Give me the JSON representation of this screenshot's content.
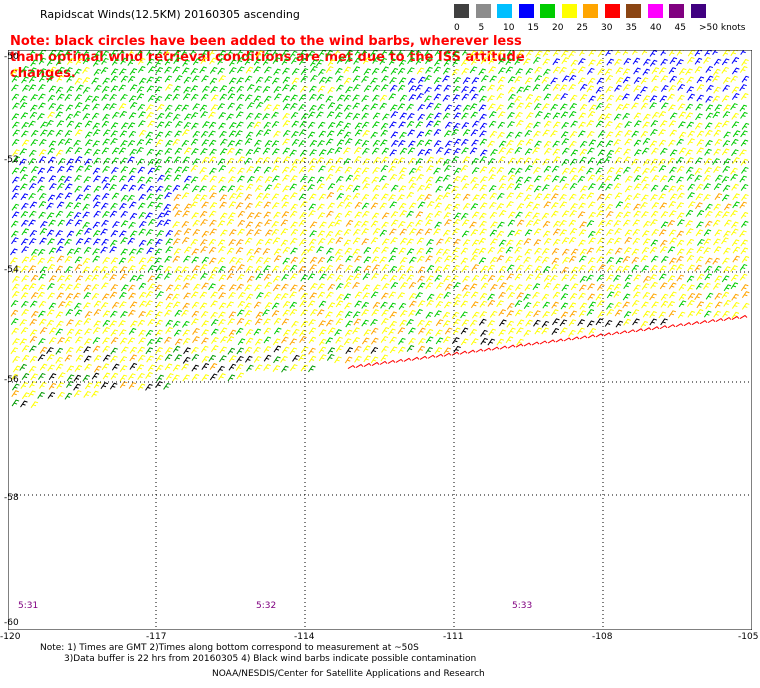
{
  "title": "Rapidscat Winds(12.5KM) 20160305 ascending",
  "note": "Note: black circles have been added to the wind barbs, wherever less than optimal wind retrieval conditions are met due to the ISS attitude changes.",
  "legend": {
    "labels": [
      "0",
      "5",
      "10",
      "15",
      "20",
      "25",
      "30",
      "35",
      "40",
      "45",
      ">50 knots"
    ],
    "colors": [
      "#404040",
      "#8c8c8c",
      "#00bfff",
      "#0000ff",
      "#00cc00",
      "#ffff00",
      "#ffa500",
      "#ff0000",
      "#8b4513",
      "#ff00ff",
      "#800080",
      "#400080"
    ]
  },
  "map": {
    "lat_labels": [
      "-50",
      "-52",
      "-54",
      "-56",
      "-58",
      "-60"
    ],
    "lon_labels": [
      "-120",
      "-117",
      "-114",
      "-111",
      "-108",
      "-105"
    ],
    "time_labels": [
      "5:31",
      "5:32",
      "5:33"
    ]
  },
  "footnotes": {
    "line1": "Note: 1) Times are GMT 2)Times along bottom correspond to measurement at ~50S",
    "line2": "3)Data buffer is 22 hrs from 20160305 4) Black wind barbs indicate possible contamination"
  },
  "credit": "NOAA/NESDIS/Center for Satellite Applications and Research",
  "colors": {
    "note": "#ff0000",
    "time": "#800080",
    "grid": "#000000"
  }
}
